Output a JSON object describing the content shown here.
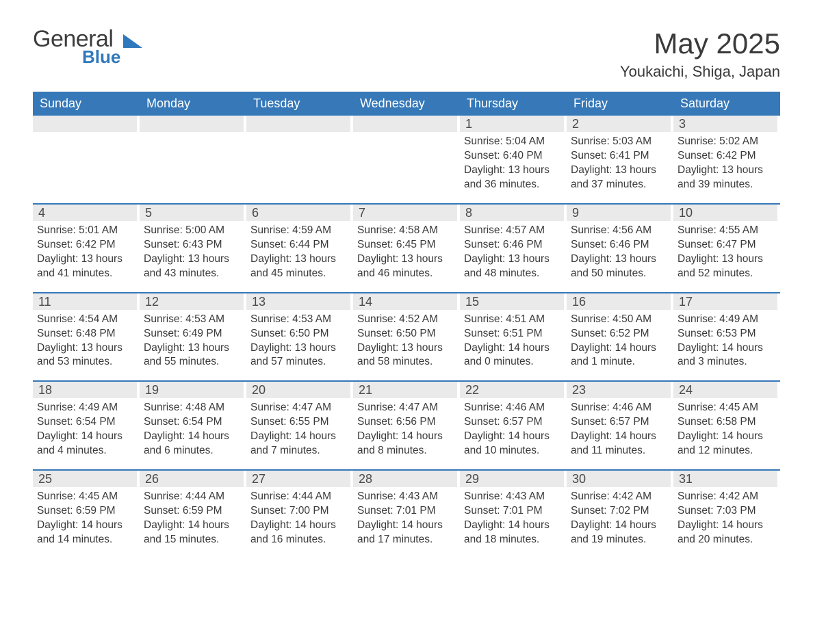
{
  "logo": {
    "general": "General",
    "blue": "Blue",
    "shape_color": "#2f78bd"
  },
  "title": "May 2025",
  "location": "Youkaichi, Shiga, Japan",
  "colors": {
    "header_bg": "#3678b8",
    "header_text": "#ffffff",
    "daynum_bg": "#eaeaea",
    "text": "#3a3a3a",
    "row_border": "#3678b8"
  },
  "layout": {
    "columns": 7,
    "rows": 5,
    "first_day_column_index": 4
  },
  "day_headers": [
    "Sunday",
    "Monday",
    "Tuesday",
    "Wednesday",
    "Thursday",
    "Friday",
    "Saturday"
  ],
  "label": {
    "sunrise": "Sunrise:",
    "sunset": "Sunset:",
    "daylight": "Daylight:"
  },
  "days": [
    {
      "n": 1,
      "sunrise": "5:04 AM",
      "sunset": "6:40 PM",
      "daylight": "13 hours and 36 minutes."
    },
    {
      "n": 2,
      "sunrise": "5:03 AM",
      "sunset": "6:41 PM",
      "daylight": "13 hours and 37 minutes."
    },
    {
      "n": 3,
      "sunrise": "5:02 AM",
      "sunset": "6:42 PM",
      "daylight": "13 hours and 39 minutes."
    },
    {
      "n": 4,
      "sunrise": "5:01 AM",
      "sunset": "6:42 PM",
      "daylight": "13 hours and 41 minutes."
    },
    {
      "n": 5,
      "sunrise": "5:00 AM",
      "sunset": "6:43 PM",
      "daylight": "13 hours and 43 minutes."
    },
    {
      "n": 6,
      "sunrise": "4:59 AM",
      "sunset": "6:44 PM",
      "daylight": "13 hours and 45 minutes."
    },
    {
      "n": 7,
      "sunrise": "4:58 AM",
      "sunset": "6:45 PM",
      "daylight": "13 hours and 46 minutes."
    },
    {
      "n": 8,
      "sunrise": "4:57 AM",
      "sunset": "6:46 PM",
      "daylight": "13 hours and 48 minutes."
    },
    {
      "n": 9,
      "sunrise": "4:56 AM",
      "sunset": "6:46 PM",
      "daylight": "13 hours and 50 minutes."
    },
    {
      "n": 10,
      "sunrise": "4:55 AM",
      "sunset": "6:47 PM",
      "daylight": "13 hours and 52 minutes."
    },
    {
      "n": 11,
      "sunrise": "4:54 AM",
      "sunset": "6:48 PM",
      "daylight": "13 hours and 53 minutes."
    },
    {
      "n": 12,
      "sunrise": "4:53 AM",
      "sunset": "6:49 PM",
      "daylight": "13 hours and 55 minutes."
    },
    {
      "n": 13,
      "sunrise": "4:53 AM",
      "sunset": "6:50 PM",
      "daylight": "13 hours and 57 minutes."
    },
    {
      "n": 14,
      "sunrise": "4:52 AM",
      "sunset": "6:50 PM",
      "daylight": "13 hours and 58 minutes."
    },
    {
      "n": 15,
      "sunrise": "4:51 AM",
      "sunset": "6:51 PM",
      "daylight": "14 hours and 0 minutes."
    },
    {
      "n": 16,
      "sunrise": "4:50 AM",
      "sunset": "6:52 PM",
      "daylight": "14 hours and 1 minute."
    },
    {
      "n": 17,
      "sunrise": "4:49 AM",
      "sunset": "6:53 PM",
      "daylight": "14 hours and 3 minutes."
    },
    {
      "n": 18,
      "sunrise": "4:49 AM",
      "sunset": "6:54 PM",
      "daylight": "14 hours and 4 minutes."
    },
    {
      "n": 19,
      "sunrise": "4:48 AM",
      "sunset": "6:54 PM",
      "daylight": "14 hours and 6 minutes."
    },
    {
      "n": 20,
      "sunrise": "4:47 AM",
      "sunset": "6:55 PM",
      "daylight": "14 hours and 7 minutes."
    },
    {
      "n": 21,
      "sunrise": "4:47 AM",
      "sunset": "6:56 PM",
      "daylight": "14 hours and 8 minutes."
    },
    {
      "n": 22,
      "sunrise": "4:46 AM",
      "sunset": "6:57 PM",
      "daylight": "14 hours and 10 minutes."
    },
    {
      "n": 23,
      "sunrise": "4:46 AM",
      "sunset": "6:57 PM",
      "daylight": "14 hours and 11 minutes."
    },
    {
      "n": 24,
      "sunrise": "4:45 AM",
      "sunset": "6:58 PM",
      "daylight": "14 hours and 12 minutes."
    },
    {
      "n": 25,
      "sunrise": "4:45 AM",
      "sunset": "6:59 PM",
      "daylight": "14 hours and 14 minutes."
    },
    {
      "n": 26,
      "sunrise": "4:44 AM",
      "sunset": "6:59 PM",
      "daylight": "14 hours and 15 minutes."
    },
    {
      "n": 27,
      "sunrise": "4:44 AM",
      "sunset": "7:00 PM",
      "daylight": "14 hours and 16 minutes."
    },
    {
      "n": 28,
      "sunrise": "4:43 AM",
      "sunset": "7:01 PM",
      "daylight": "14 hours and 17 minutes."
    },
    {
      "n": 29,
      "sunrise": "4:43 AM",
      "sunset": "7:01 PM",
      "daylight": "14 hours and 18 minutes."
    },
    {
      "n": 30,
      "sunrise": "4:42 AM",
      "sunset": "7:02 PM",
      "daylight": "14 hours and 19 minutes."
    },
    {
      "n": 31,
      "sunrise": "4:42 AM",
      "sunset": "7:03 PM",
      "daylight": "14 hours and 20 minutes."
    }
  ]
}
